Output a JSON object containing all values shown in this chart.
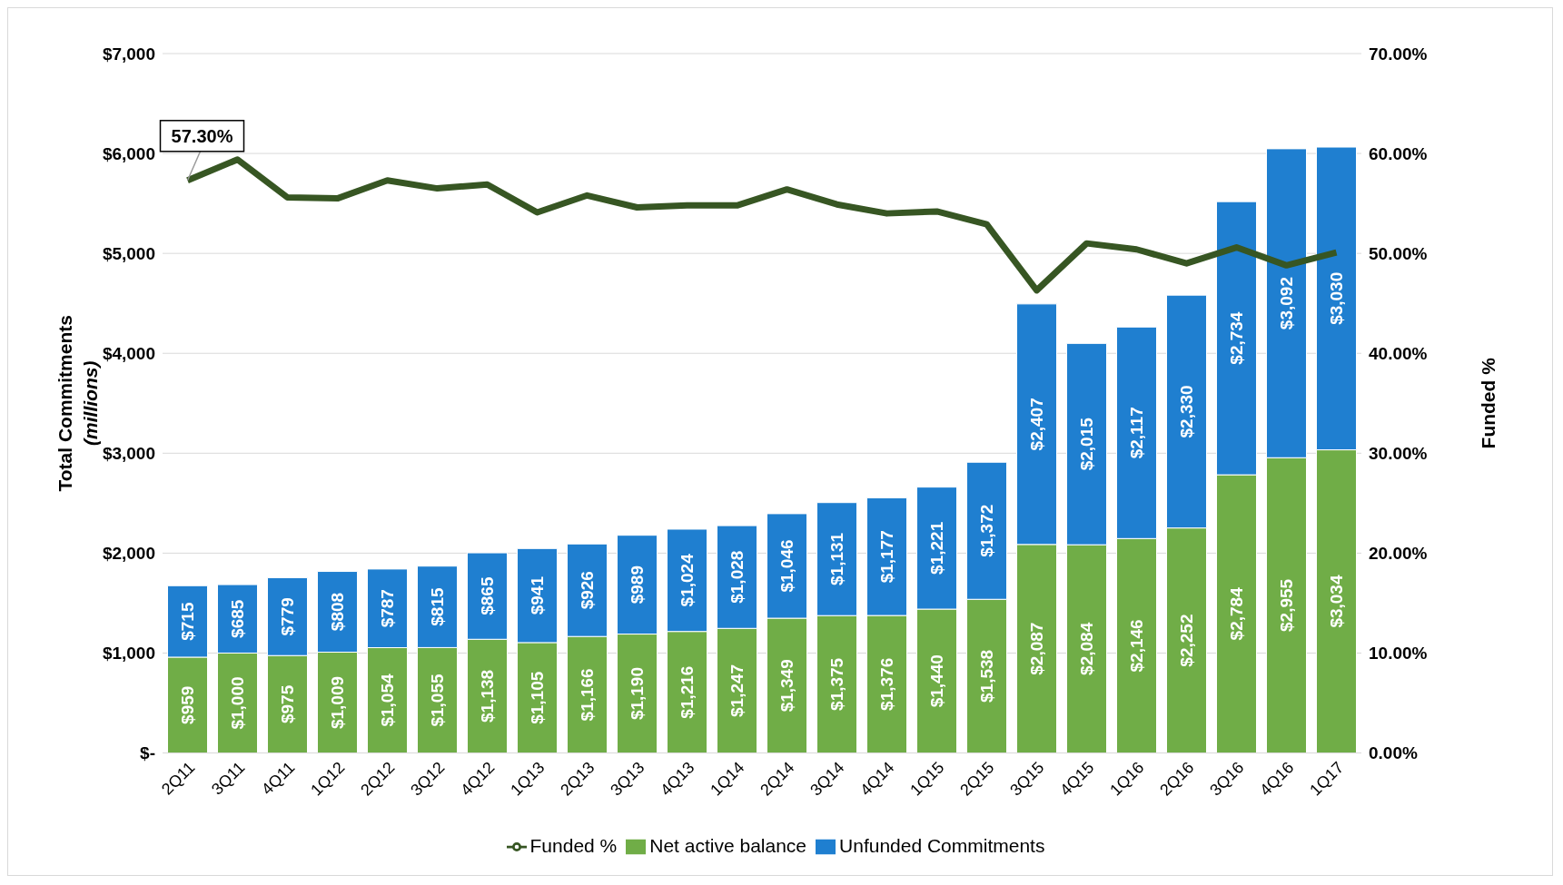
{
  "chart_data": {
    "type": "bar",
    "stacked": true,
    "ylabel": "Total Commitments (millions)",
    "y2label": "Funded %",
    "categories": [
      "2Q11",
      "3Q11",
      "4Q11",
      "1Q12",
      "2Q12",
      "3Q12",
      "4Q12",
      "1Q13",
      "2Q13",
      "3Q13",
      "4Q13",
      "1Q14",
      "2Q14",
      "3Q14",
      "4Q14",
      "1Q15",
      "2Q15",
      "3Q15",
      "4Q15",
      "1Q16",
      "2Q16",
      "3Q16",
      "4Q16",
      "1Q17"
    ],
    "series": [
      {
        "name": "Net active balance",
        "color": "#70ad47",
        "values": [
          959,
          1000,
          975,
          1009,
          1054,
          1055,
          1138,
          1105,
          1166,
          1190,
          1216,
          1247,
          1349,
          1375,
          1376,
          1440,
          1538,
          2087,
          2084,
          2146,
          2252,
          2784,
          2955,
          3034
        ],
        "value_labels": [
          "$959",
          "$1,000",
          "$975",
          "$1,009",
          "$1,054",
          "$1,055",
          "$1,138",
          "$1,105",
          "$1,166",
          "$1,190",
          "$1,216",
          "$1,247",
          "$1,349",
          "$1,375",
          "$1,376",
          "$1,440",
          "$1,538",
          "$2,087",
          "$2,084",
          "$2,146",
          "$2,252",
          "$2,784",
          "$2,955",
          "$3,034"
        ]
      },
      {
        "name": "Unfunded Commitments",
        "color": "#1f7fd0",
        "values": [
          715,
          685,
          779,
          808,
          787,
          815,
          865,
          941,
          926,
          989,
          1024,
          1028,
          1046,
          1131,
          1177,
          1221,
          1372,
          2407,
          2015,
          2117,
          2330,
          2734,
          3092,
          3030
        ],
        "value_labels": [
          "$715",
          "$685",
          "$779",
          "$808",
          "$787",
          "$815",
          "$865",
          "$941",
          "$926",
          "$989",
          "$1,024",
          "$1,028",
          "$1,046",
          "$1,131",
          "$1,177",
          "$1,221",
          "$1,372",
          "$2,407",
          "$2,015",
          "$2,117",
          "$2,330",
          "$2,734",
          "$3,092",
          "$3,030"
        ]
      },
      {
        "name": "Funded %",
        "type": "line",
        "axis": "y2",
        "color": "#375623",
        "values": [
          57.3,
          59.4,
          55.6,
          55.5,
          57.3,
          56.5,
          56.9,
          54.1,
          55.8,
          54.6,
          54.8,
          54.8,
          56.4,
          54.9,
          54.0,
          54.2,
          52.9,
          46.3,
          51.0,
          50.4,
          49.0,
          50.6,
          48.8,
          50.1
        ]
      }
    ],
    "ylim": [
      0,
      7000
    ],
    "yticks": [
      {
        "value": 0,
        "label": "$-"
      },
      {
        "value": 1000,
        "label": "$1,000"
      },
      {
        "value": 2000,
        "label": "$2,000"
      },
      {
        "value": 3000,
        "label": "$3,000"
      },
      {
        "value": 4000,
        "label": "$4,000"
      },
      {
        "value": 5000,
        "label": "$5,000"
      },
      {
        "value": 6000,
        "label": "$6,000"
      },
      {
        "value": 7000,
        "label": "$7,000"
      }
    ],
    "y2lim": [
      0,
      70
    ],
    "y2ticks": [
      {
        "value": 0,
        "label": "0.00%"
      },
      {
        "value": 10,
        "label": "10.00%"
      },
      {
        "value": 20,
        "label": "20.00%"
      },
      {
        "value": 30,
        "label": "30.00%"
      },
      {
        "value": 40,
        "label": "40.00%"
      },
      {
        "value": 50,
        "label": "50.00%"
      },
      {
        "value": 60,
        "label": "60.00%"
      },
      {
        "value": 70,
        "label": "70.00%"
      }
    ],
    "annotations": [
      {
        "text": "57.30%",
        "x": "2Q11",
        "y": 5730
      }
    ],
    "grid": "y",
    "legend": "bottom",
    "marker": "none",
    "line_style": "solid"
  }
}
